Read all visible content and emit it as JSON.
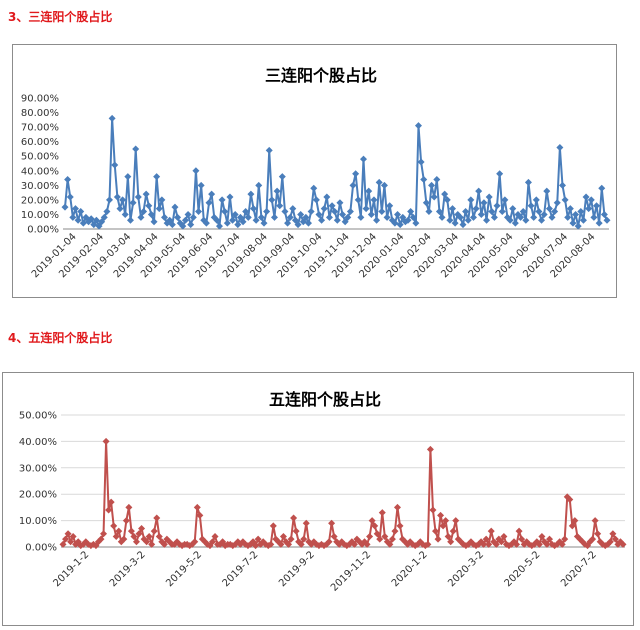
{
  "sections": [
    {
      "heading": "3、三连阳个股占比"
    },
    {
      "heading": "4、五连阳个股占比"
    }
  ],
  "chart_data": [
    {
      "type": "line",
      "title": "三连阳个股占比",
      "xlabel": "",
      "ylabel": "",
      "ylim": [
        0,
        90
      ],
      "yticks": [
        "0.00%",
        "10.00%",
        "20.00%",
        "30.00%",
        "40.00%",
        "50.00%",
        "60.00%",
        "70.00%",
        "80.00%",
        "90.00%"
      ],
      "xticks": [
        "2019-01-04",
        "2019-02-04",
        "2019-03-04",
        "2019-04-04",
        "2019-05-04",
        "2019-06-04",
        "2019-07-04",
        "2019-08-04",
        "2019-09-04",
        "2019-10-04",
        "2019-11-04",
        "2019-12-04",
        "2020-01-04",
        "2020-02-04",
        "2020-03-04",
        "2020-04-04",
        "2020-05-04",
        "2020-06-04",
        "2020-07-04",
        "2020-08-04"
      ],
      "color": "#4a7ebb",
      "marker": "diamond",
      "grid": false,
      "legend": "none",
      "series": [
        {
          "values": [
            15,
            34,
            22,
            8,
            14,
            6,
            12,
            4,
            8,
            5,
            7,
            3,
            6,
            2,
            5,
            8,
            12,
            20,
            76,
            44,
            22,
            14,
            20,
            10,
            36,
            6,
            18,
            55,
            22,
            8,
            12,
            24,
            16,
            10,
            5,
            36,
            14,
            20,
            8,
            4,
            6,
            3,
            15,
            8,
            4,
            2,
            6,
            10,
            3,
            8,
            40,
            12,
            30,
            6,
            4,
            18,
            24,
            8,
            6,
            2,
            20,
            12,
            4,
            22,
            6,
            10,
            3,
            8,
            5,
            12,
            8,
            24,
            14,
            6,
            30,
            8,
            4,
            12,
            54,
            20,
            8,
            26,
            16,
            36,
            12,
            4,
            8,
            14,
            6,
            3,
            10,
            5,
            8,
            4,
            12,
            28,
            20,
            10,
            6,
            14,
            22,
            8,
            16,
            12,
            6,
            18,
            10,
            5,
            8,
            12,
            30,
            38,
            20,
            8,
            48,
            14,
            26,
            10,
            20,
            6,
            32,
            12,
            30,
            8,
            16,
            6,
            4,
            10,
            3,
            8,
            5,
            6,
            12,
            8,
            4,
            71,
            46,
            34,
            18,
            12,
            30,
            22,
            34,
            12,
            8,
            24,
            20,
            6,
            14,
            4,
            10,
            8,
            3,
            12,
            6,
            20,
            8,
            14,
            26,
            10,
            18,
            6,
            22,
            12,
            8,
            16,
            38,
            12,
            20,
            8,
            6,
            14,
            4,
            10,
            8,
            12,
            6,
            32,
            16,
            8,
            20,
            12,
            6,
            10,
            26,
            14,
            8,
            12,
            18,
            56,
            30,
            20,
            8,
            14,
            4,
            10,
            2,
            12,
            6,
            22,
            14,
            20,
            8,
            16,
            4,
            28,
            10,
            6
          ]
        }
      ]
    },
    {
      "type": "line",
      "title": "五连阳个股占比",
      "xlabel": "",
      "ylabel": "",
      "ylim": [
        0,
        50
      ],
      "yticks": [
        "0.00%",
        "10.00%",
        "20.00%",
        "30.00%",
        "40.00%",
        "50.00%"
      ],
      "xticks": [
        "2019-1-2",
        "2019-3-2",
        "2019-5-2",
        "2019-7-2",
        "2019-9-2",
        "2019-11-2",
        "2020-1-2",
        "2020-3-2",
        "2020-5-2",
        "2020-7-2"
      ],
      "color": "#c0504d",
      "marker": "diamond",
      "grid": true,
      "legend": "none",
      "series": [
        {
          "values": [
            1,
            3,
            5,
            2,
            4,
            1,
            2,
            0.5,
            1,
            2,
            1,
            0.5,
            1,
            0.5,
            2,
            3,
            5,
            40,
            14,
            17,
            8,
            4,
            6,
            2,
            3,
            10,
            15,
            6,
            4,
            2,
            5,
            7,
            3,
            2,
            4,
            1,
            6,
            11,
            4,
            2,
            1,
            3,
            2,
            1,
            1,
            2,
            1,
            0.5,
            1,
            1,
            0.5,
            1,
            2,
            15,
            12,
            3,
            2,
            1,
            0.5,
            2,
            4,
            1,
            1,
            2,
            0.5,
            1,
            1,
            0.5,
            1,
            2,
            1,
            2,
            1,
            0.5,
            1,
            2,
            0.5,
            3,
            1,
            2,
            1,
            0.5,
            1,
            8,
            3,
            2,
            1,
            4,
            2,
            1,
            3,
            11,
            6,
            2,
            1,
            3,
            9,
            2,
            1,
            2,
            1,
            0.5,
            1,
            0.5,
            1,
            2,
            9,
            4,
            2,
            1,
            2,
            1,
            0.5,
            1,
            2,
            1,
            3,
            2,
            1,
            2,
            1,
            4,
            10,
            8,
            5,
            3,
            13,
            4,
            2,
            1,
            3,
            6,
            15,
            8,
            3,
            2,
            1,
            2,
            1,
            0.5,
            1,
            2,
            1,
            0.5,
            1,
            37,
            14,
            6,
            3,
            12,
            8,
            10,
            4,
            2,
            6,
            10,
            3,
            2,
            1,
            0.5,
            1,
            2,
            1,
            0.5,
            1,
            2,
            1,
            3,
            1,
            6,
            2,
            1,
            3,
            2,
            4,
            1,
            0.5,
            1,
            2,
            1,
            6,
            3,
            1,
            2,
            1,
            0.5,
            1,
            2,
            1,
            4,
            2,
            1,
            3,
            1,
            0.5,
            1,
            2,
            1,
            3,
            19,
            18,
            8,
            10,
            4,
            3,
            2,
            1,
            0.5,
            2,
            3,
            10,
            5,
            2,
            1,
            0.5,
            1,
            2,
            5,
            3,
            1,
            2,
            1
          ]
        }
      ]
    }
  ]
}
